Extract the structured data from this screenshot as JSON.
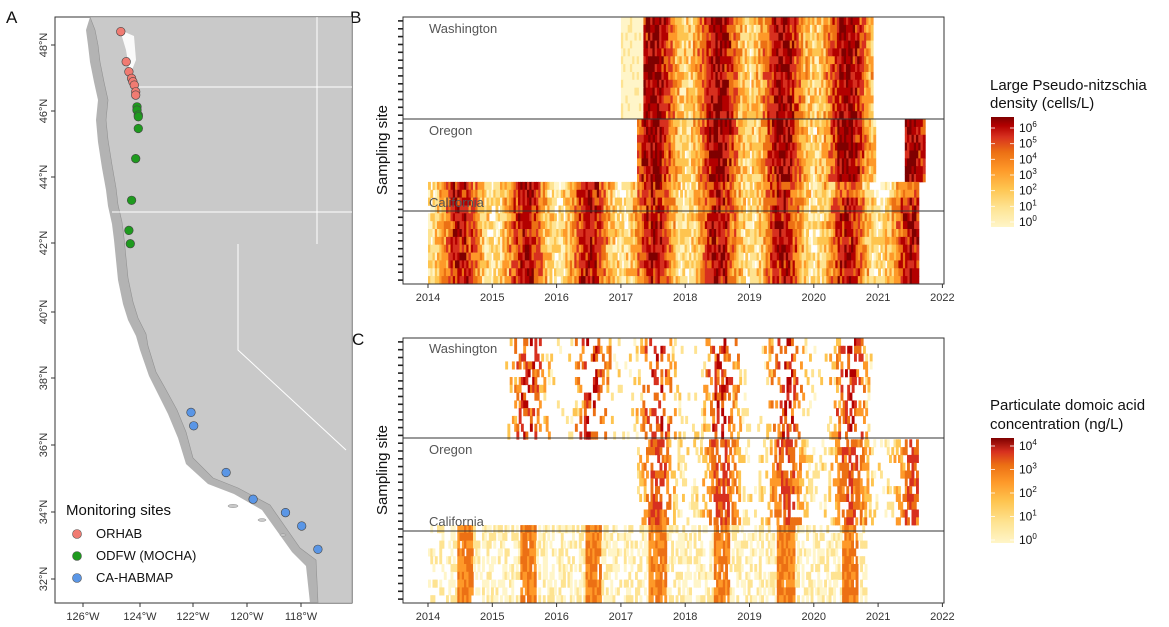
{
  "panels": {
    "a": "A",
    "b": "B",
    "c": "C"
  },
  "map": {
    "lat_ticks": [
      "48°N",
      "46°N",
      "44°N",
      "42°N",
      "40°N",
      "38°N",
      "36°N",
      "34°N",
      "32°N"
    ],
    "lon_ticks": [
      "126°W",
      "124°W",
      "122°W",
      "120°W",
      "118°W"
    ],
    "legend": {
      "title": "Monitoring sites",
      "items": [
        {
          "label": "ORHAB",
          "color": "#f07b72"
        },
        {
          "label": "ODFW (MOCHA)",
          "color": "#1e9a1e"
        },
        {
          "label": "CA-HABMAP",
          "color": "#5a96e6"
        }
      ]
    },
    "land_color": "#c9c9c9",
    "coast_color": "#9a9a9a"
  },
  "heatmap_common": {
    "ylabel": "Sampling site",
    "regions": [
      "Washington",
      "Oregon",
      "California"
    ],
    "xticks": [
      "2014",
      "2015",
      "2016",
      "2017",
      "2018",
      "2019",
      "2020",
      "2021",
      "2022"
    ]
  },
  "legend_b": {
    "title1": "Large Pseudo-nitzschia",
    "title2": "density (cells/L)",
    "bases": [
      "10",
      "10",
      "10",
      "10",
      "10",
      "10",
      "10"
    ],
    "exps": [
      "6",
      "5",
      "4",
      "3",
      "2",
      "1",
      "0"
    ]
  },
  "legend_c": {
    "title1": "Particulate domoic acid",
    "title2": "concentration (ng/L)",
    "bases": [
      "10",
      "10",
      "10",
      "10",
      "10"
    ],
    "exps": [
      "4",
      "3",
      "2",
      "1",
      "0"
    ]
  },
  "colorscale": [
    "#fff5c8",
    "#fee391",
    "#fec44f",
    "#fe9929",
    "#ec7014",
    "#d7301f",
    "#b30000",
    "#7f0000"
  ],
  "chart_data": [
    {
      "type": "scatter",
      "panel": "A",
      "xlabel": "",
      "ylabel": "",
      "xlim": [
        -127.5,
        -116.5
      ],
      "ylim": [
        31.3,
        49.0
      ],
      "series": [
        {
          "name": "ORHAB",
          "points": [
            [
              -124.6,
              48.4
            ],
            [
              -124.4,
              47.5
            ],
            [
              -124.3,
              47.2
            ],
            [
              -124.2,
              47.0
            ],
            [
              -124.15,
              46.9
            ],
            [
              -124.1,
              46.8
            ],
            [
              -124.05,
              46.6
            ],
            [
              -124.05,
              46.5
            ]
          ]
        },
        {
          "name": "ODFW (MOCHA)",
          "points": [
            [
              -124.0,
              46.15
            ],
            [
              -124.0,
              46.05
            ],
            [
              -123.95,
              45.9
            ],
            [
              -123.95,
              45.85
            ],
            [
              -123.95,
              45.5
            ],
            [
              -124.05,
              44.6
            ],
            [
              -124.2,
              43.35
            ],
            [
              -124.3,
              42.45
            ],
            [
              -124.25,
              42.05
            ]
          ]
        },
        {
          "name": "CA-HABMAP",
          "points": [
            [
              -122.0,
              37.0
            ],
            [
              -121.9,
              36.6
            ],
            [
              -120.7,
              35.2
            ],
            [
              -119.7,
              34.4
            ],
            [
              -118.5,
              34.0
            ],
            [
              -117.9,
              33.6
            ],
            [
              -117.3,
              32.9
            ]
          ]
        }
      ]
    },
    {
      "type": "heatmap",
      "panel": "B",
      "xlabel": "",
      "ylabel": "Sampling site",
      "xlim": [
        2013.6,
        2022.1
      ],
      "rows": 34,
      "regions": [
        {
          "name": "Washington",
          "rows": 13,
          "start": 2017.0,
          "end": 2020.9
        },
        {
          "name": "Oregon",
          "rows": 8,
          "start": 2017.25,
          "end": 2021.7
        },
        {
          "name": "California",
          "rows": 13,
          "start": 2014.0,
          "end": 2021.6
        }
      ],
      "value_range_log10": [
        0,
        6.5
      ]
    },
    {
      "type": "heatmap",
      "panel": "C",
      "xlabel": "",
      "ylabel": "Sampling site",
      "xlim": [
        2013.6,
        2022.1
      ],
      "rows": 34,
      "regions": [
        {
          "name": "Washington",
          "rows": 13,
          "start": 2015.2,
          "end": 2020.9
        },
        {
          "name": "Oregon",
          "rows": 11,
          "start": 2017.25,
          "end": 2021.6
        },
        {
          "name": "California",
          "rows": 10,
          "start": 2014.0,
          "end": 2020.8
        }
      ],
      "value_range_log10": [
        0,
        4.5
      ]
    }
  ]
}
